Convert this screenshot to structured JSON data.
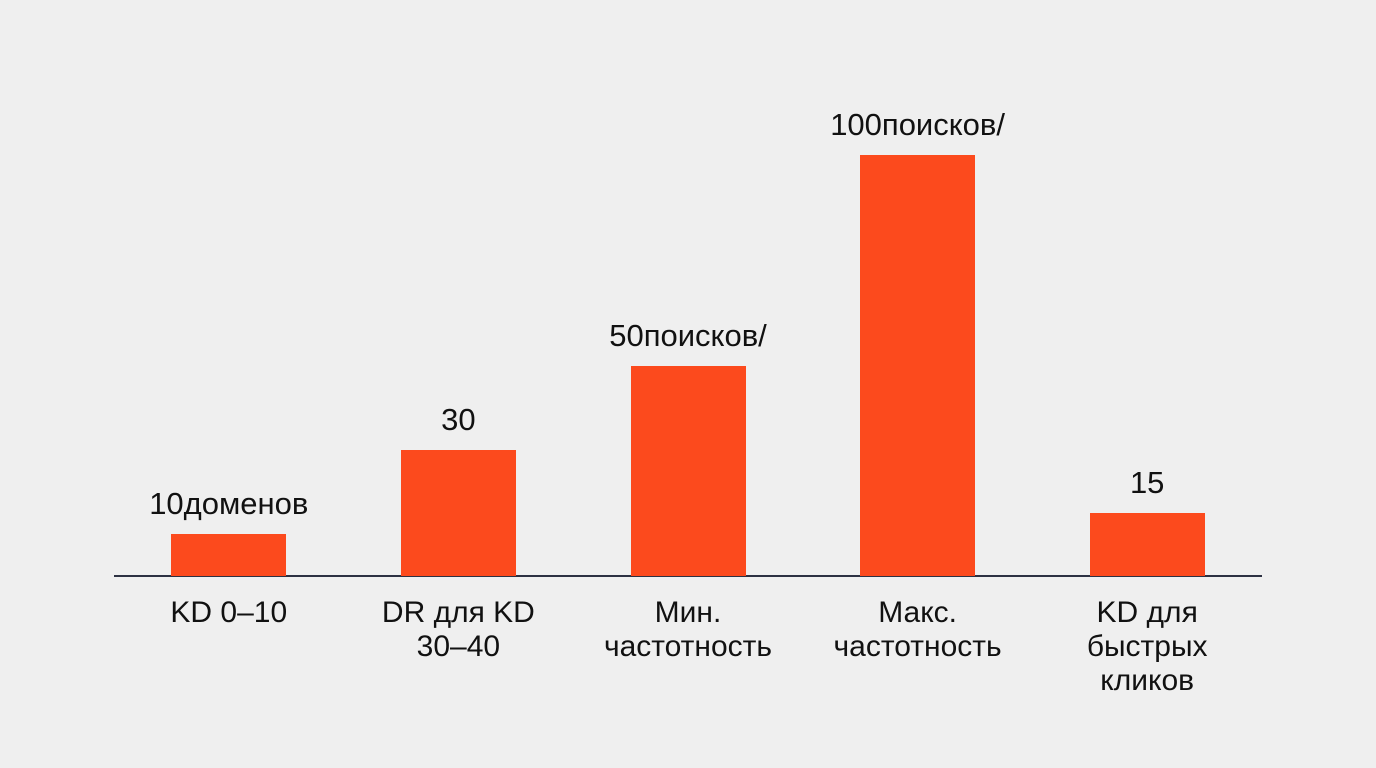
{
  "chart_data": {
    "type": "bar",
    "categories": [
      "KD 0–10",
      "DR для KD 30–40",
      "Мин. частотность",
      "Макс. частотность",
      "KD для быстрых кликов"
    ],
    "values": [
      10,
      30,
      50,
      100,
      15
    ],
    "value_labels": [
      "10доменов",
      "30",
      "50поисков/",
      "100поисков/",
      "15"
    ],
    "color": "#fc4a1d"
  }
}
